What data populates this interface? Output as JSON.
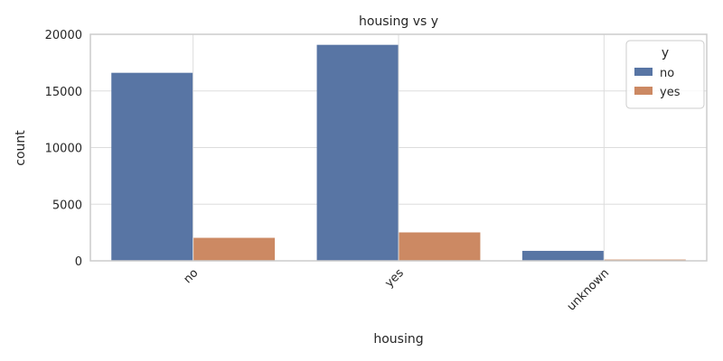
{
  "chart_data": {
    "type": "bar",
    "title": "housing vs y",
    "xlabel": "housing",
    "ylabel": "count",
    "categories": [
      "no",
      "yes",
      "unknown"
    ],
    "series": [
      {
        "name": "no",
        "values": [
          16600,
          19070,
          880
        ],
        "color": "#5875a4"
      },
      {
        "name": "yes",
        "values": [
          2030,
          2510,
          110
        ],
        "color": "#cc8963"
      }
    ],
    "ylim": [
      0,
      20000
    ],
    "yticks": [
      0,
      5000,
      10000,
      15000,
      20000
    ],
    "grid": true,
    "legend": {
      "title": "y",
      "placement": "top-right"
    },
    "colors": {
      "axis": "#cccccc",
      "grid": "#dddddd",
      "text": "#262626"
    }
  }
}
